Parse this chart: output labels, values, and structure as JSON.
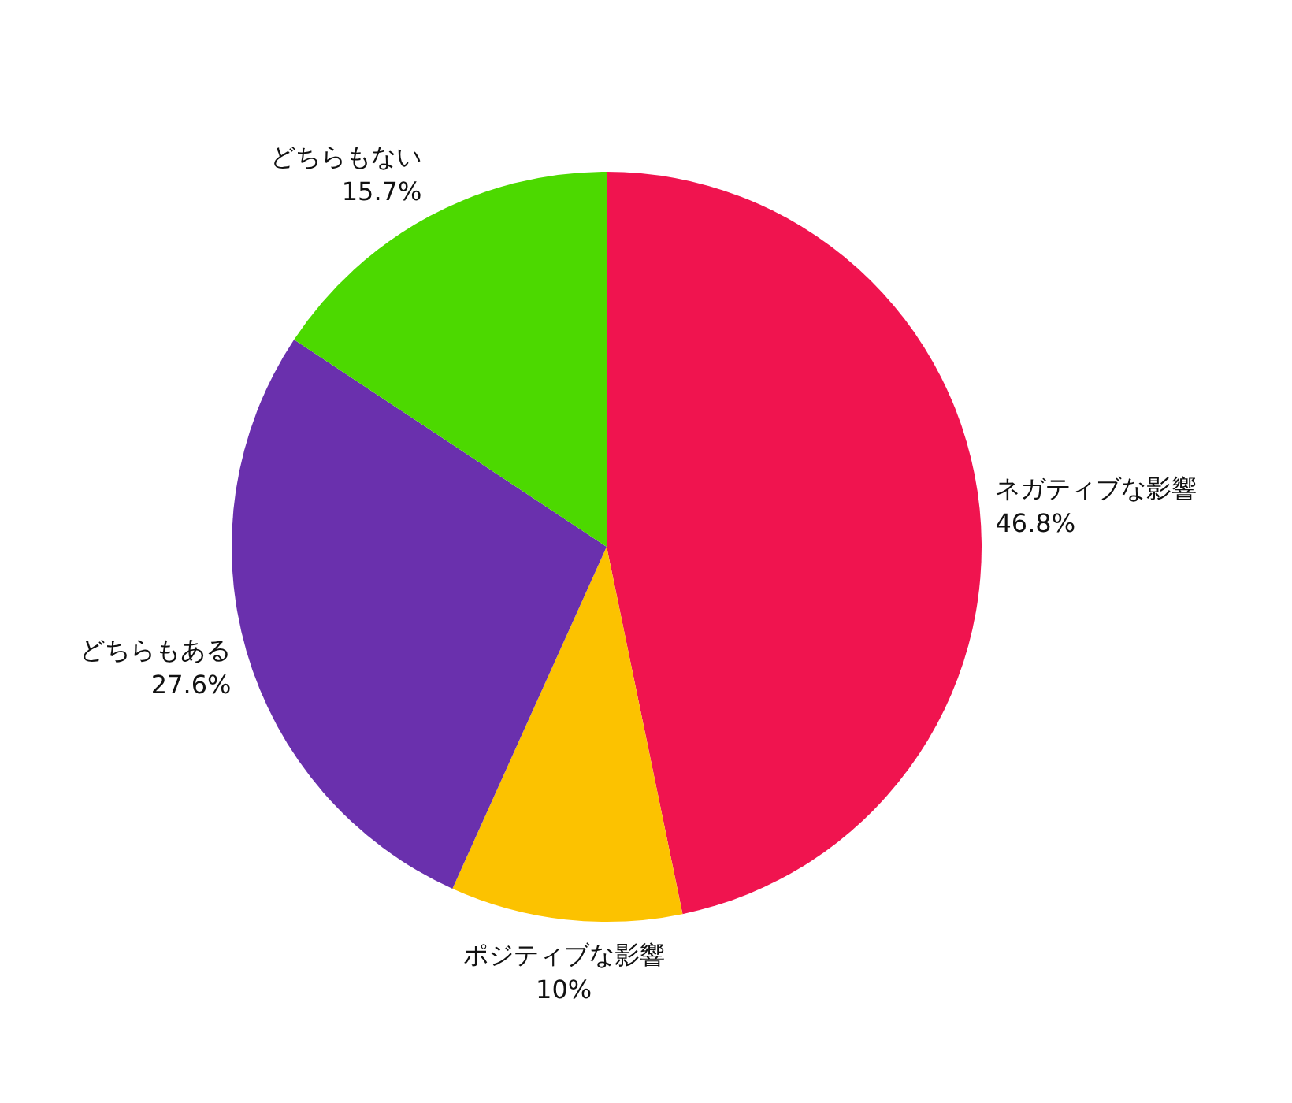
{
  "chart_data": {
    "type": "pie",
    "categories": [
      "ネガティブな影響",
      "ポジティブな影響",
      "どちらもある",
      "どちらもない"
    ],
    "values": [
      46.8,
      10,
      27.6,
      15.7
    ],
    "value_labels": [
      "46.8%",
      "10%",
      "27.6%",
      "15.7%"
    ],
    "colors": [
      "#f0144f",
      "#fcc200",
      "#6a30ad",
      "#4cd900"
    ]
  }
}
